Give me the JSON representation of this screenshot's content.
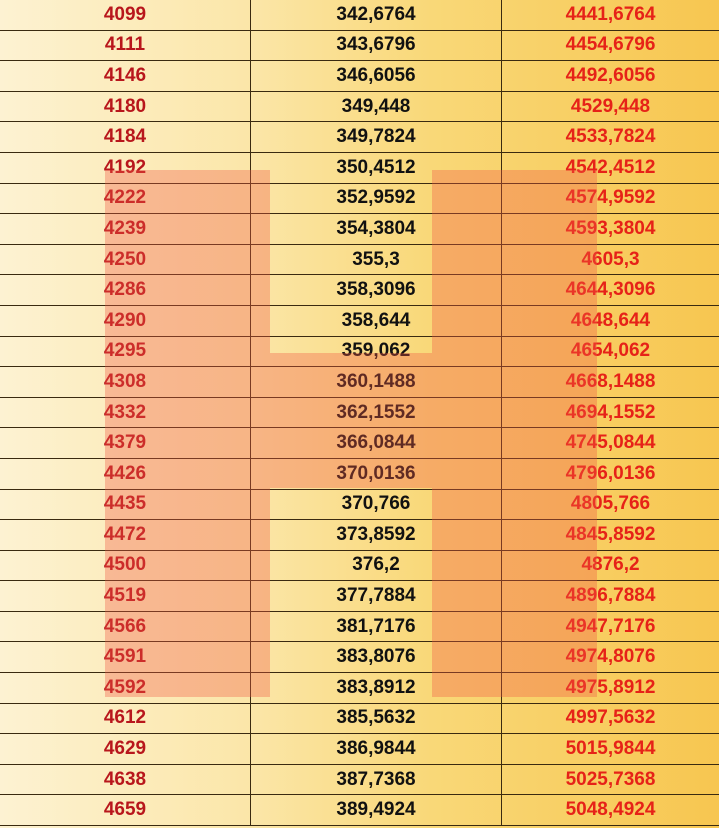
{
  "rows": [
    [
      "4099",
      "342,6764",
      "4441,6764"
    ],
    [
      "4111",
      "343,6796",
      "4454,6796"
    ],
    [
      "4146",
      "346,6056",
      "4492,6056"
    ],
    [
      "4180",
      "349,448",
      "4529,448"
    ],
    [
      "4184",
      "349,7824",
      "4533,7824"
    ],
    [
      "4192",
      "350,4512",
      "4542,4512"
    ],
    [
      "4222",
      "352,9592",
      "4574,9592"
    ],
    [
      "4239",
      "354,3804",
      "4593,3804"
    ],
    [
      "4250",
      "355,3",
      "4605,3"
    ],
    [
      "4286",
      "358,3096",
      "4644,3096"
    ],
    [
      "4290",
      "358,644",
      "4648,644"
    ],
    [
      "4295",
      "359,062",
      "4654,062"
    ],
    [
      "4308",
      "360,1488",
      "4668,1488"
    ],
    [
      "4332",
      "362,1552",
      "4694,1552"
    ],
    [
      "4379",
      "366,0844",
      "4745,0844"
    ],
    [
      "4426",
      "370,0136",
      "4796,0136"
    ],
    [
      "4435",
      "370,766",
      "4805,766"
    ],
    [
      "4472",
      "373,8592",
      "4845,8592"
    ],
    [
      "4500",
      "376,2",
      "4876,2"
    ],
    [
      "4519",
      "377,7884",
      "4896,7884"
    ],
    [
      "4566",
      "381,7176",
      "4947,7176"
    ],
    [
      "4591",
      "383,8076",
      "4974,8076"
    ],
    [
      "4592",
      "383,8912",
      "4975,8912"
    ],
    [
      "4612",
      "385,5632",
      "4997,5632"
    ],
    [
      "4629",
      "386,9844",
      "5015,9844"
    ],
    [
      "4638",
      "387,7368",
      "5025,7368"
    ],
    [
      "4659",
      "389,4924",
      "5048,4924"
    ]
  ],
  "watermark": {
    "letter": "H",
    "color": "#f05a46"
  }
}
